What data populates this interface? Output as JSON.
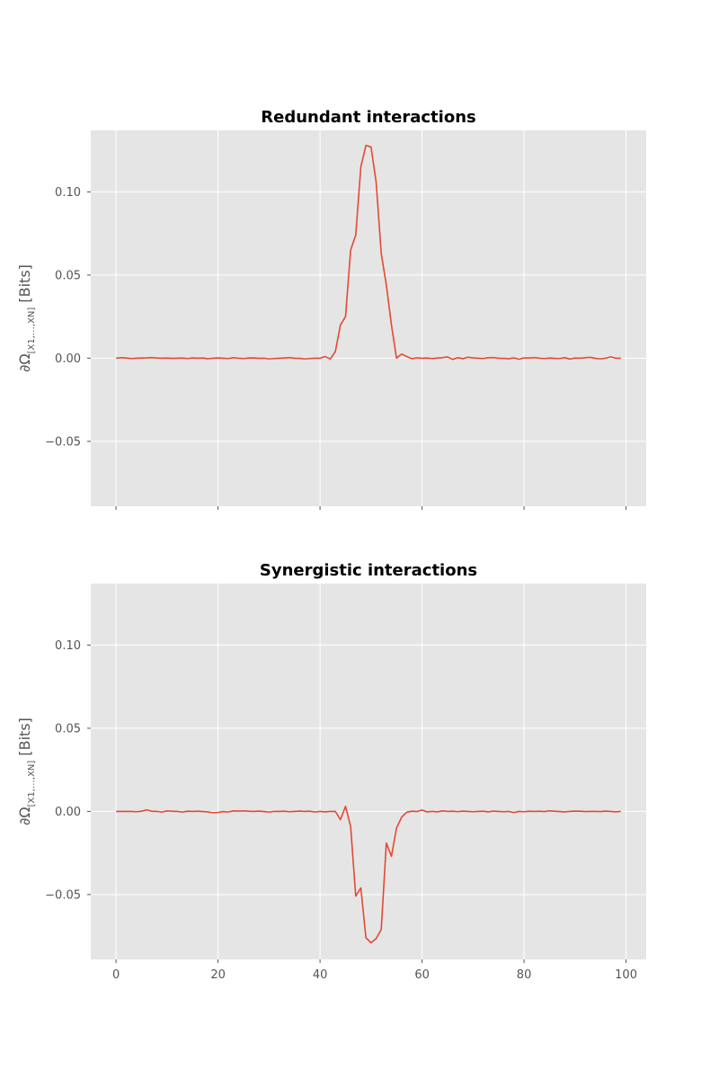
{
  "chart_data": [
    {
      "type": "line",
      "title": "Redundant interactions",
      "ylabel": "∂Ω[X1,…,XN] [Bits]",
      "ylabel_parts": {
        "main": "∂Ω",
        "sub": "[X1,…,XN]",
        "unit": " [Bits]"
      },
      "xlim": [
        -4.95,
        103.95
      ],
      "ylim": [
        -0.089,
        0.137
      ],
      "xticks": [
        0,
        20,
        40,
        60,
        80,
        100
      ],
      "show_x_tick_labels": false,
      "yticks": [
        -0.05,
        0.0,
        0.05,
        0.1
      ],
      "ytick_labels": [
        "−0.05",
        "0.00",
        "0.05",
        "0.10"
      ],
      "grid": true,
      "background": "#e5e5e5",
      "line_color": "#e24a33",
      "series": [
        {
          "x": [
            0,
            1,
            2,
            3,
            4,
            5,
            6,
            7,
            8,
            9,
            10,
            11,
            12,
            13,
            14,
            15,
            16,
            17,
            18,
            19,
            20,
            21,
            22,
            23,
            24,
            25,
            26,
            27,
            28,
            29,
            30,
            31,
            32,
            33,
            34,
            35,
            36,
            37,
            38,
            39,
            40,
            41,
            42,
            43,
            44,
            45,
            46,
            47,
            48,
            49,
            50,
            51,
            52,
            53,
            54,
            55,
            56,
            57,
            58,
            59,
            60,
            61,
            62,
            63,
            64,
            65,
            66,
            67,
            68,
            69,
            70,
            71,
            72,
            73,
            74,
            75,
            76,
            77,
            78,
            79,
            80,
            81,
            82,
            83,
            84,
            85,
            86,
            87,
            88,
            89,
            90,
            91,
            92,
            93,
            94,
            95,
            96,
            97,
            98,
            99
          ],
          "values": [
            0.0,
            0.0003,
            0.0001,
            -0.0002,
            0.0,
            0.0001,
            0.0002,
            0.0004,
            0.0001,
            0.0,
            0.0001,
            -0.0001,
            0.0,
            0.0001,
            -0.0002,
            0.0002,
            0.0,
            0.0001,
            -0.0003,
            0.0,
            0.0002,
            0.0,
            -0.0002,
            0.0003,
            0.0,
            -0.0002,
            0.0001,
            0.0002,
            -0.0001,
            0.0,
            -0.0004,
            -0.0002,
            0.0,
            0.0001,
            0.0004,
            0.0,
            -0.0001,
            -0.0004,
            -0.0002,
            0.0,
            0.0,
            0.001,
            -0.0005,
            0.004,
            0.02,
            0.025,
            0.065,
            0.074,
            0.115,
            0.128,
            0.127,
            0.106,
            0.063,
            0.044,
            0.02,
            0.0,
            0.0025,
            0.001,
            -0.0003,
            0.0002,
            0.0,
            0.0001,
            -0.0002,
            0.0001,
            0.0003,
            0.0008,
            -0.0007,
            0.0003,
            -0.0003,
            0.0006,
            0.0002,
            0.0,
            -0.0002,
            0.0003,
            0.0004,
            0.0,
            -0.0001,
            -0.0003,
            0.0002,
            -0.0006,
            0.0002,
            0.0001,
            0.0004,
            0.0,
            -0.0002,
            0.0001,
            -0.0001,
            -0.0002,
            0.0003,
            -0.0005,
            0.0001,
            0.0,
            0.0003,
            0.0005,
            -0.0001,
            -0.0004,
            0.0,
            0.0008,
            0.0,
            0.0
          ]
        }
      ]
    },
    {
      "type": "line",
      "title": "Synergistic interactions",
      "ylabel": "∂Ω[X1,…,XN] [Bits]",
      "ylabel_parts": {
        "main": "∂Ω",
        "sub": "[X1,…,XN]",
        "unit": " [Bits]"
      },
      "xlim": [
        -4.95,
        103.95
      ],
      "ylim": [
        -0.089,
        0.137
      ],
      "xticks": [
        0,
        20,
        40,
        60,
        80,
        100
      ],
      "xtick_labels": [
        "0",
        "20",
        "40",
        "60",
        "80",
        "100"
      ],
      "show_x_tick_labels": true,
      "yticks": [
        -0.05,
        0.0,
        0.05,
        0.1
      ],
      "ytick_labels": [
        "−0.05",
        "0.00",
        "0.05",
        "0.10"
      ],
      "grid": true,
      "background": "#e5e5e5",
      "line_color": "#e24a33",
      "series": [
        {
          "x": [
            0,
            1,
            2,
            3,
            4,
            5,
            6,
            7,
            8,
            9,
            10,
            11,
            12,
            13,
            14,
            15,
            16,
            17,
            18,
            19,
            20,
            21,
            22,
            23,
            24,
            25,
            26,
            27,
            28,
            29,
            30,
            31,
            32,
            33,
            34,
            35,
            36,
            37,
            38,
            39,
            40,
            41,
            42,
            43,
            44,
            45,
            46,
            47,
            48,
            49,
            50,
            51,
            52,
            53,
            54,
            55,
            56,
            57,
            58,
            59,
            60,
            61,
            62,
            63,
            64,
            65,
            66,
            67,
            68,
            69,
            70,
            71,
            72,
            73,
            74,
            75,
            76,
            77,
            78,
            79,
            80,
            81,
            82,
            83,
            84,
            85,
            86,
            87,
            88,
            89,
            90,
            91,
            92,
            93,
            94,
            95,
            96,
            97,
            98,
            99
          ],
          "values": [
            0.0,
            0.0,
            0.0,
            0.0,
            -0.0002,
            0.0001,
            0.0009,
            0.0001,
            0.0,
            -0.0004,
            0.0003,
            0.0001,
            0.0,
            -0.0004,
            0.0001,
            0.0,
            0.0001,
            -0.0001,
            -0.0003,
            -0.0008,
            -0.0006,
            -0.0001,
            -0.0004,
            0.0003,
            0.0002,
            0.0003,
            0.0001,
            0.0,
            0.0002,
            -0.0001,
            -0.0004,
            0.0,
            0.0,
            0.0001,
            -0.0002,
            0.0,
            0.0002,
            0.0,
            0.0001,
            -0.0004,
            0.0,
            -0.0003,
            0.0,
            0.0,
            -0.005,
            0.003,
            -0.009,
            -0.051,
            -0.046,
            -0.076,
            -0.079,
            -0.0765,
            -0.071,
            -0.019,
            -0.027,
            -0.01,
            -0.0035,
            -0.0005,
            0.0001,
            -0.0001,
            0.0008,
            -0.0003,
            0.0,
            -0.0003,
            0.0003,
            0.0,
            0.0001,
            -0.0002,
            0.0002,
            0.0,
            -0.0002,
            0.0,
            0.0001,
            -0.0003,
            0.0002,
            0.0,
            -0.0002,
            0.0,
            -0.0007,
            0.0,
            -0.0002,
            0.0001,
            0.0,
            0.0001,
            -0.0001,
            0.0003,
            0.0001,
            -0.0001,
            -0.0003,
            0.0,
            0.0002,
            0.0001,
            -0.0001,
            0.0,
            0.0,
            -0.0001,
            0.0002,
            0.0,
            -0.0003,
            0.0
          ]
        }
      ]
    }
  ]
}
